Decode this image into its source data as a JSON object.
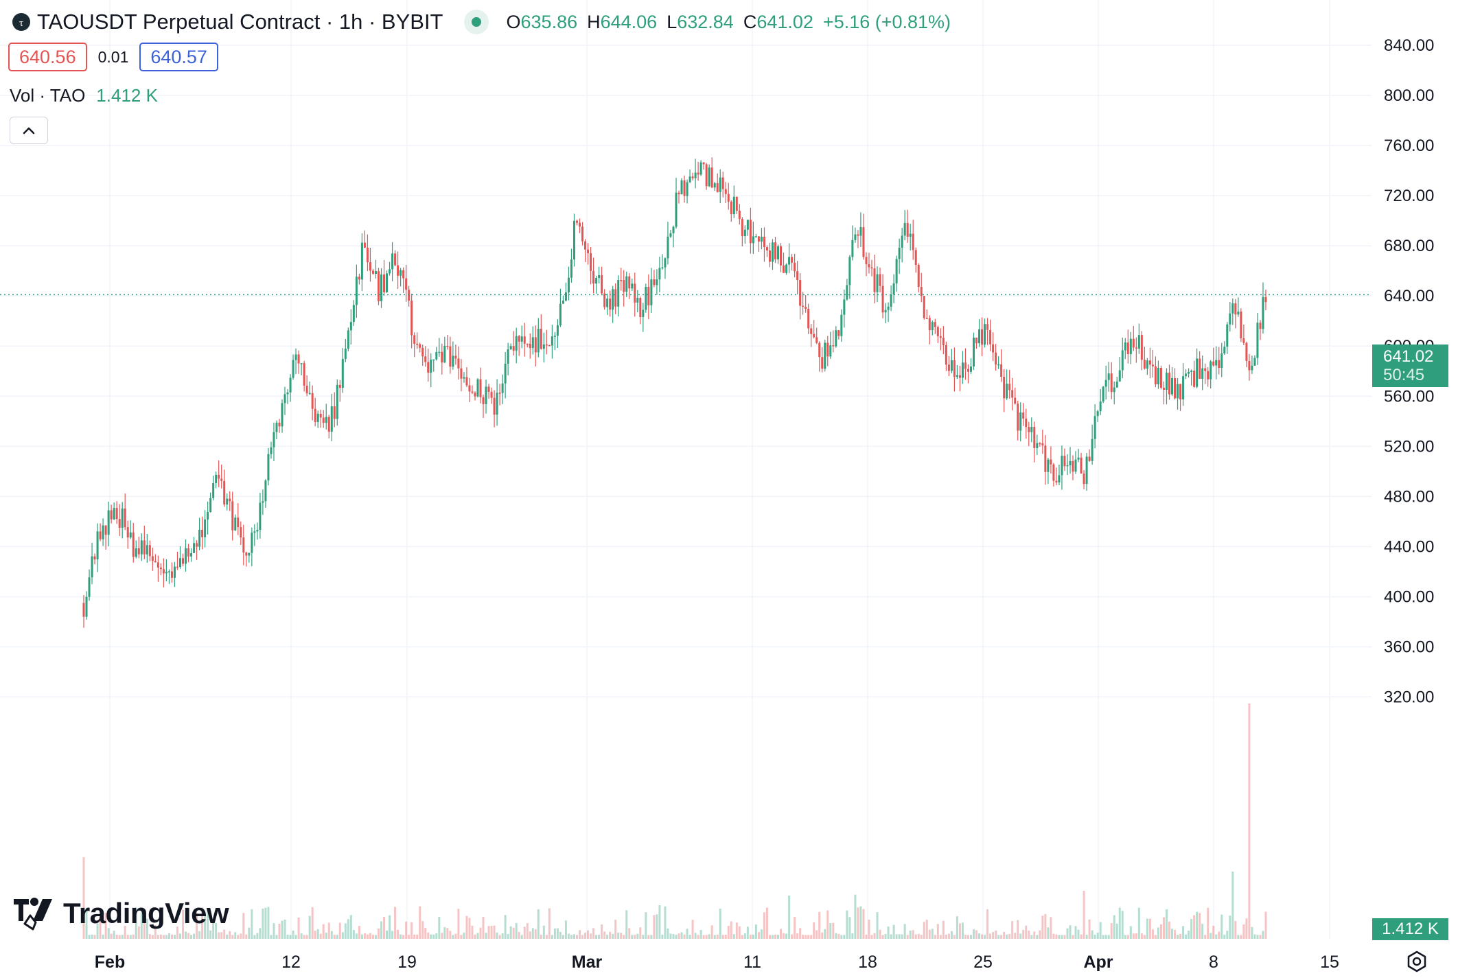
{
  "header": {
    "title": "TAOUSDT Perpetual Contract · 1h · BYBIT",
    "ohlc": {
      "o_label": "O",
      "o": "635.86",
      "h_label": "H",
      "h": "644.06",
      "l_label": "L",
      "l": "632.84",
      "c_label": "C",
      "c": "641.02"
    },
    "change": "+5.16 (+0.81%)"
  },
  "quote": {
    "sell": "640.56",
    "spread": "0.01",
    "buy": "640.57"
  },
  "volume": {
    "label": "Vol · TAO",
    "value": "1.412 K",
    "axis_tag": "1.412 K"
  },
  "last_price": {
    "price": "641.02",
    "countdown": "50:45"
  },
  "branding": {
    "logo_text": "TradingView"
  },
  "colors": {
    "up": "#2e9e7c",
    "down": "#e35555",
    "grid": "#f0f3fa",
    "text": "#131722"
  },
  "icons": {
    "collapse": "chevron-up-icon",
    "settings": "gear-icon",
    "logo": "tradingview-logo-icon"
  },
  "chart_data": {
    "type": "candlestick",
    "timeframe": "1h",
    "y_ticks": [
      "840.00",
      "800.00",
      "760.00",
      "720.00",
      "680.00",
      "640.00",
      "600.00",
      "560.00",
      "520.00",
      "480.00",
      "440.00",
      "400.00",
      "360.00",
      "320.00"
    ],
    "x_ticks": [
      "Feb",
      "12",
      "19",
      "Mar",
      "11",
      "18",
      "25",
      "Apr",
      "8",
      "15"
    ],
    "ylim": [
      300,
      860
    ],
    "last_price": 641.02,
    "price_path": [
      [
        "Jan 31",
        395
      ],
      [
        "Feb 1",
        455
      ],
      [
        "Feb 2",
        470
      ],
      [
        "Feb 3",
        440
      ],
      [
        "Feb 4",
        432
      ],
      [
        "Feb 5",
        420
      ],
      [
        "Feb 6",
        432
      ],
      [
        "Feb 7",
        440
      ],
      [
        "Feb 8",
        505
      ],
      [
        "Feb 9",
        465
      ],
      [
        "Feb 10",
        428
      ],
      [
        "Feb 11",
        490
      ],
      [
        "Feb 12",
        545
      ],
      [
        "Feb 13",
        600
      ],
      [
        "Feb 14",
        545
      ],
      [
        "Feb 15",
        535
      ],
      [
        "Feb 16",
        600
      ],
      [
        "Feb 17",
        680
      ],
      [
        "Feb 18",
        645
      ],
      [
        "Feb 19",
        670
      ],
      [
        "Feb 20",
        615
      ],
      [
        "Feb 21",
        580
      ],
      [
        "Feb 22",
        595
      ],
      [
        "Feb 23",
        580
      ],
      [
        "Feb 24",
        565
      ],
      [
        "Feb 25",
        555
      ],
      [
        "Feb 26",
        595
      ],
      [
        "Feb 27",
        610
      ],
      [
        "Feb 28",
        600
      ],
      [
        "Feb 29",
        625
      ],
      [
        "Mar 1",
        700
      ],
      [
        "Mar 2",
        660
      ],
      [
        "Mar 3",
        635
      ],
      [
        "Mar 4",
        650
      ],
      [
        "Mar 5",
        630
      ],
      [
        "Mar 6",
        660
      ],
      [
        "Mar 7",
        710
      ],
      [
        "Mar 8",
        745
      ],
      [
        "Mar 9",
        735
      ],
      [
        "Mar 10",
        725
      ],
      [
        "Mar 11",
        700
      ],
      [
        "Mar 12",
        680
      ],
      [
        "Mar 13",
        675
      ],
      [
        "Mar 14",
        665
      ],
      [
        "Mar 15",
        630
      ],
      [
        "Mar 16",
        590
      ],
      [
        "Mar 17",
        615
      ],
      [
        "Mar 18",
        700
      ],
      [
        "Mar 19",
        660
      ],
      [
        "Mar 20",
        620
      ],
      [
        "Mar 21",
        700
      ],
      [
        "Mar 22",
        640
      ],
      [
        "Mar 23",
        600
      ],
      [
        "Mar 24",
        580
      ],
      [
        "Mar 25",
        590
      ],
      [
        "Mar 26",
        620
      ],
      [
        "Mar 27",
        570
      ],
      [
        "Mar 28",
        540
      ],
      [
        "Mar 29",
        520
      ],
      [
        "Mar 30",
        495
      ],
      [
        "Mar 31",
        510
      ],
      [
        "Apr 1",
        495
      ],
      [
        "Apr 2",
        560
      ],
      [
        "Apr 3",
        580
      ],
      [
        "Apr 4",
        610
      ],
      [
        "Apr 5",
        575
      ],
      [
        "Apr 6",
        570
      ],
      [
        "Apr 7",
        565
      ],
      [
        "Apr 8",
        585
      ],
      [
        "Apr 9",
        580
      ],
      [
        "Apr 10",
        640
      ],
      [
        "Apr 11",
        575
      ],
      [
        "Apr 11 last",
        641
      ]
    ],
    "volume": {
      "typical_max_tao": 0.3,
      "spikes": [
        [
          "Jan 31",
          0.85
        ],
        [
          "Mar 6",
          0.35
        ],
        [
          "Mar 14",
          0.45
        ],
        [
          "Mar 18",
          0.46
        ],
        [
          "Apr 1",
          0.5
        ],
        [
          "Apr 10",
          0.7
        ],
        [
          "Apr 11",
          2.45
        ]
      ]
    }
  }
}
